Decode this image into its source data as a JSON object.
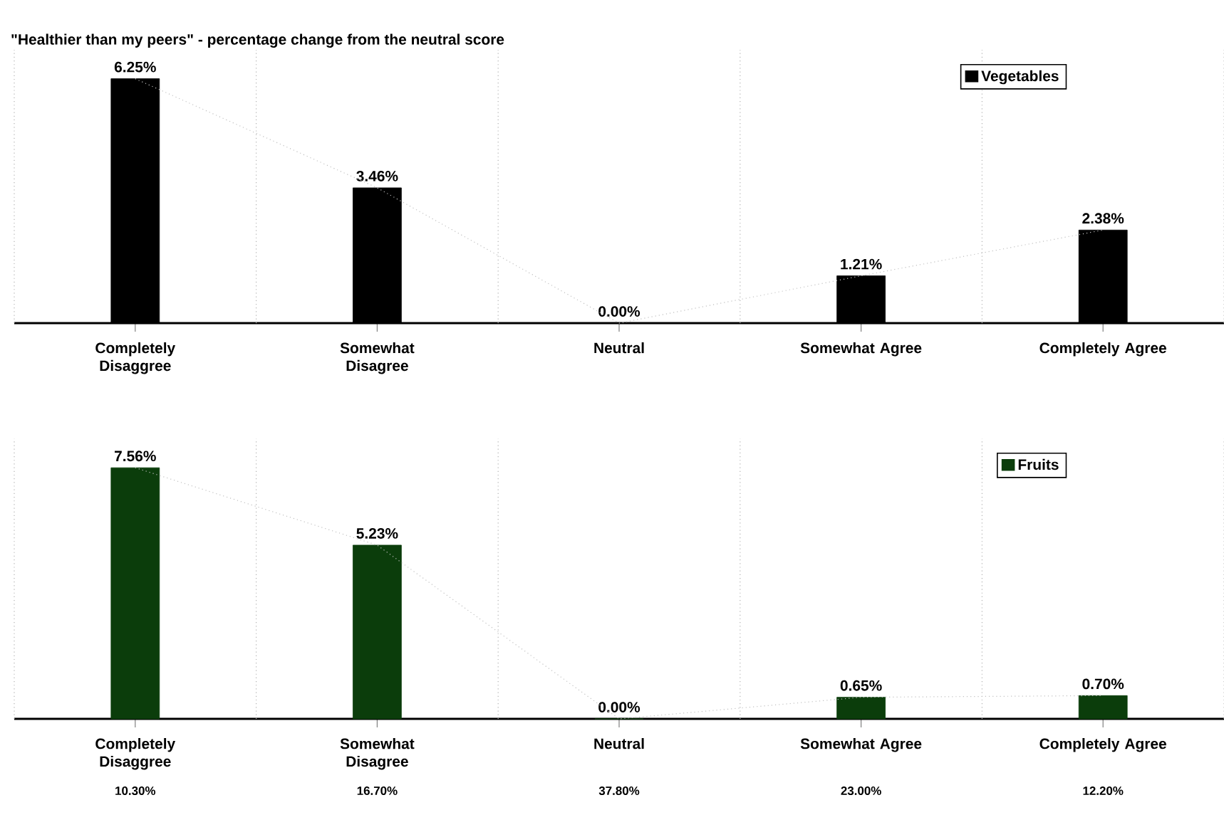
{
  "chart_data": [
    {
      "type": "bar",
      "title": "\"Healthier than my peers\" - percentage change from the neutral score",
      "categories": [
        "Completely Disaggree",
        "Somewhat Disagree",
        "Neutral",
        "Somewhat Agree",
        "Completely Agree"
      ],
      "series": [
        {
          "name": "Vegetables",
          "color": "#000000",
          "values": [
            6.25,
            3.46,
            0.0,
            1.21,
            2.38
          ],
          "value_labels": [
            "6.25%",
            "3.46%",
            "0.00%",
            "1.21%",
            "2.38%"
          ]
        },
        {
          "type": "line",
          "color": "#c0c0c0",
          "line_style": "dotted",
          "values": [
            6.25,
            3.46,
            0.0,
            1.21,
            2.38
          ]
        }
      ],
      "grid": "x",
      "legend": "top right"
    },
    {
      "type": "bar",
      "categories": [
        "Completely Disaggree",
        "Somewhat Disagree",
        "Neutral",
        "Somewhat Agree",
        "Completely Agree"
      ],
      "series": [
        {
          "name": "Fruits",
          "color": "#0b3d0b",
          "values": [
            7.56,
            5.23,
            0.0,
            0.65,
            0.7
          ],
          "value_labels": [
            "7.56%",
            "5.23%",
            "0.00%",
            "0.65%",
            "0.70%"
          ]
        },
        {
          "type": "line",
          "color": "#c0c0c0",
          "line_style": "dotted",
          "values": [
            7.56,
            5.23,
            0.0,
            0.65,
            0.7
          ]
        }
      ],
      "annotations": [
        "10.30%",
        "16.70%",
        "37.80%",
        "23.00%",
        "12.20%"
      ],
      "grid": "x",
      "legend": "top right"
    }
  ]
}
